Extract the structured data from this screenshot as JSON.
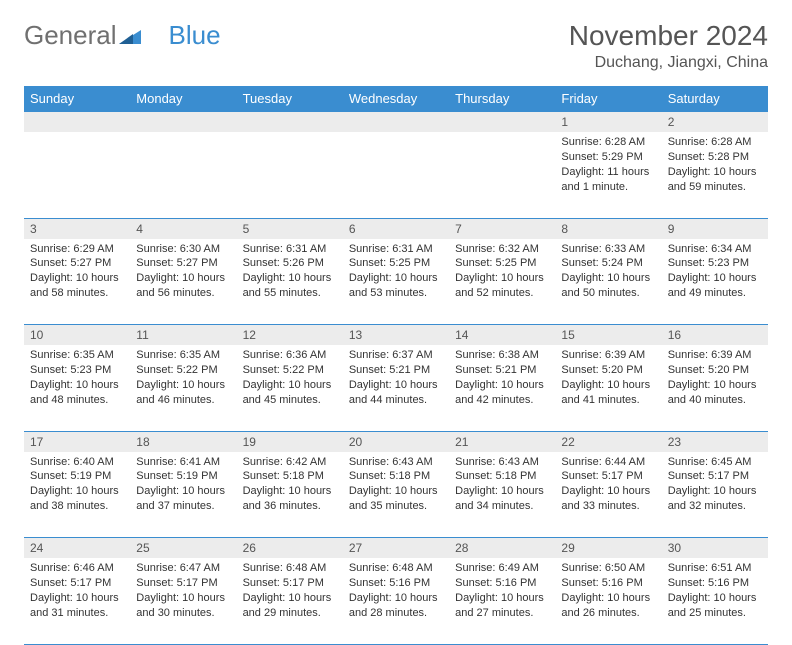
{
  "logo": {
    "part1": "General",
    "part2": "Blue"
  },
  "title": "November 2024",
  "location": "Duchang, Jiangxi, China",
  "colors": {
    "header_bg": "#3a8dd0",
    "header_text": "#ffffff",
    "daynum_bg": "#ececec",
    "title_text": "#555555",
    "cell_text": "#333333",
    "border": "#3a8dd0"
  },
  "fonts": {
    "title_pt": 28,
    "location_pt": 16,
    "header_pt": 13,
    "daynum_pt": 12,
    "cell_pt": 11
  },
  "day_headers": [
    "Sunday",
    "Monday",
    "Tuesday",
    "Wednesday",
    "Thursday",
    "Friday",
    "Saturday"
  ],
  "weeks": [
    {
      "days": [
        {
          "num": "",
          "sunrise": "",
          "sunset": "",
          "daylight": ""
        },
        {
          "num": "",
          "sunrise": "",
          "sunset": "",
          "daylight": ""
        },
        {
          "num": "",
          "sunrise": "",
          "sunset": "",
          "daylight": ""
        },
        {
          "num": "",
          "sunrise": "",
          "sunset": "",
          "daylight": ""
        },
        {
          "num": "",
          "sunrise": "",
          "sunset": "",
          "daylight": ""
        },
        {
          "num": "1",
          "sunrise": "Sunrise: 6:28 AM",
          "sunset": "Sunset: 5:29 PM",
          "daylight": "Daylight: 11 hours and 1 minute."
        },
        {
          "num": "2",
          "sunrise": "Sunrise: 6:28 AM",
          "sunset": "Sunset: 5:28 PM",
          "daylight": "Daylight: 10 hours and 59 minutes."
        }
      ]
    },
    {
      "days": [
        {
          "num": "3",
          "sunrise": "Sunrise: 6:29 AM",
          "sunset": "Sunset: 5:27 PM",
          "daylight": "Daylight: 10 hours and 58 minutes."
        },
        {
          "num": "4",
          "sunrise": "Sunrise: 6:30 AM",
          "sunset": "Sunset: 5:27 PM",
          "daylight": "Daylight: 10 hours and 56 minutes."
        },
        {
          "num": "5",
          "sunrise": "Sunrise: 6:31 AM",
          "sunset": "Sunset: 5:26 PM",
          "daylight": "Daylight: 10 hours and 55 minutes."
        },
        {
          "num": "6",
          "sunrise": "Sunrise: 6:31 AM",
          "sunset": "Sunset: 5:25 PM",
          "daylight": "Daylight: 10 hours and 53 minutes."
        },
        {
          "num": "7",
          "sunrise": "Sunrise: 6:32 AM",
          "sunset": "Sunset: 5:25 PM",
          "daylight": "Daylight: 10 hours and 52 minutes."
        },
        {
          "num": "8",
          "sunrise": "Sunrise: 6:33 AM",
          "sunset": "Sunset: 5:24 PM",
          "daylight": "Daylight: 10 hours and 50 minutes."
        },
        {
          "num": "9",
          "sunrise": "Sunrise: 6:34 AM",
          "sunset": "Sunset: 5:23 PM",
          "daylight": "Daylight: 10 hours and 49 minutes."
        }
      ]
    },
    {
      "days": [
        {
          "num": "10",
          "sunrise": "Sunrise: 6:35 AM",
          "sunset": "Sunset: 5:23 PM",
          "daylight": "Daylight: 10 hours and 48 minutes."
        },
        {
          "num": "11",
          "sunrise": "Sunrise: 6:35 AM",
          "sunset": "Sunset: 5:22 PM",
          "daylight": "Daylight: 10 hours and 46 minutes."
        },
        {
          "num": "12",
          "sunrise": "Sunrise: 6:36 AM",
          "sunset": "Sunset: 5:22 PM",
          "daylight": "Daylight: 10 hours and 45 minutes."
        },
        {
          "num": "13",
          "sunrise": "Sunrise: 6:37 AM",
          "sunset": "Sunset: 5:21 PM",
          "daylight": "Daylight: 10 hours and 44 minutes."
        },
        {
          "num": "14",
          "sunrise": "Sunrise: 6:38 AM",
          "sunset": "Sunset: 5:21 PM",
          "daylight": "Daylight: 10 hours and 42 minutes."
        },
        {
          "num": "15",
          "sunrise": "Sunrise: 6:39 AM",
          "sunset": "Sunset: 5:20 PM",
          "daylight": "Daylight: 10 hours and 41 minutes."
        },
        {
          "num": "16",
          "sunrise": "Sunrise: 6:39 AM",
          "sunset": "Sunset: 5:20 PM",
          "daylight": "Daylight: 10 hours and 40 minutes."
        }
      ]
    },
    {
      "days": [
        {
          "num": "17",
          "sunrise": "Sunrise: 6:40 AM",
          "sunset": "Sunset: 5:19 PM",
          "daylight": "Daylight: 10 hours and 38 minutes."
        },
        {
          "num": "18",
          "sunrise": "Sunrise: 6:41 AM",
          "sunset": "Sunset: 5:19 PM",
          "daylight": "Daylight: 10 hours and 37 minutes."
        },
        {
          "num": "19",
          "sunrise": "Sunrise: 6:42 AM",
          "sunset": "Sunset: 5:18 PM",
          "daylight": "Daylight: 10 hours and 36 minutes."
        },
        {
          "num": "20",
          "sunrise": "Sunrise: 6:43 AM",
          "sunset": "Sunset: 5:18 PM",
          "daylight": "Daylight: 10 hours and 35 minutes."
        },
        {
          "num": "21",
          "sunrise": "Sunrise: 6:43 AM",
          "sunset": "Sunset: 5:18 PM",
          "daylight": "Daylight: 10 hours and 34 minutes."
        },
        {
          "num": "22",
          "sunrise": "Sunrise: 6:44 AM",
          "sunset": "Sunset: 5:17 PM",
          "daylight": "Daylight: 10 hours and 33 minutes."
        },
        {
          "num": "23",
          "sunrise": "Sunrise: 6:45 AM",
          "sunset": "Sunset: 5:17 PM",
          "daylight": "Daylight: 10 hours and 32 minutes."
        }
      ]
    },
    {
      "days": [
        {
          "num": "24",
          "sunrise": "Sunrise: 6:46 AM",
          "sunset": "Sunset: 5:17 PM",
          "daylight": "Daylight: 10 hours and 31 minutes."
        },
        {
          "num": "25",
          "sunrise": "Sunrise: 6:47 AM",
          "sunset": "Sunset: 5:17 PM",
          "daylight": "Daylight: 10 hours and 30 minutes."
        },
        {
          "num": "26",
          "sunrise": "Sunrise: 6:48 AM",
          "sunset": "Sunset: 5:17 PM",
          "daylight": "Daylight: 10 hours and 29 minutes."
        },
        {
          "num": "27",
          "sunrise": "Sunrise: 6:48 AM",
          "sunset": "Sunset: 5:16 PM",
          "daylight": "Daylight: 10 hours and 28 minutes."
        },
        {
          "num": "28",
          "sunrise": "Sunrise: 6:49 AM",
          "sunset": "Sunset: 5:16 PM",
          "daylight": "Daylight: 10 hours and 27 minutes."
        },
        {
          "num": "29",
          "sunrise": "Sunrise: 6:50 AM",
          "sunset": "Sunset: 5:16 PM",
          "daylight": "Daylight: 10 hours and 26 minutes."
        },
        {
          "num": "30",
          "sunrise": "Sunrise: 6:51 AM",
          "sunset": "Sunset: 5:16 PM",
          "daylight": "Daylight: 10 hours and 25 minutes."
        }
      ]
    }
  ]
}
